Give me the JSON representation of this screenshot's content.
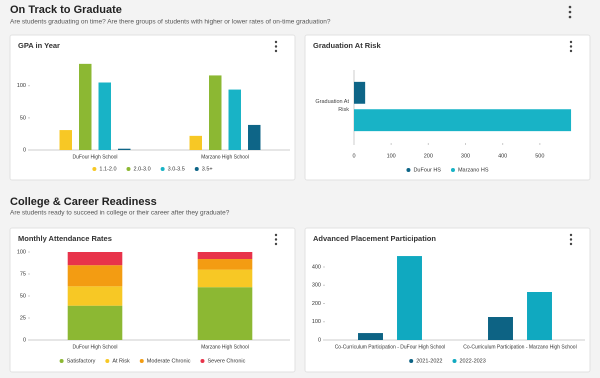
{
  "sections": [
    {
      "title": "On Track to Graduate",
      "subtitle": "Are students graduating on time? Are there groups of students with higher or lower rates of on-time graduation?"
    },
    {
      "title": "College & Career Readiness",
      "subtitle": "Are students ready to succeed in college or their career after they graduate?"
    }
  ],
  "chart_data": [
    {
      "type": "bar",
      "title": "GPA in Year",
      "categories": [
        "DuFour High School",
        "Marzano High School"
      ],
      "series": [
        {
          "name": "1.1-2.0",
          "color": "#f7c825",
          "values": [
            31,
            22
          ]
        },
        {
          "name": "2.0-3.0",
          "color": "#8cb833",
          "values": [
            134,
            116
          ]
        },
        {
          "name": "3.0-3.5",
          "color": "#18b3c6",
          "values": [
            105,
            94
          ]
        },
        {
          "name": "3.5+",
          "color": "#0e6587",
          "values": [
            2,
            39
          ]
        }
      ],
      "ylim": [
        0,
        140
      ],
      "yticks": [
        0,
        50,
        100
      ],
      "grid": false,
      "legend": "bottom"
    },
    {
      "type": "bar",
      "orientation": "horizontal",
      "title": "Graduation At Risk",
      "categories": [
        "Graduation At Risk"
      ],
      "series": [
        {
          "name": "DuFour HS",
          "color": "#0e6587",
          "values": [
            30
          ]
        },
        {
          "name": "Marzano HS",
          "color": "#18b3c6",
          "values": [
            584
          ]
        }
      ],
      "xlim": [
        0,
        600
      ],
      "xticks": [
        0,
        100,
        200,
        300,
        400,
        500
      ],
      "grid": false,
      "legend": "bottom"
    },
    {
      "type": "bar",
      "stacked": true,
      "title": "Monthly Attendance Rates",
      "categories": [
        "DuFour High School",
        "Marzano High School"
      ],
      "series": [
        {
          "name": "Satisfactory",
          "color": "#8cb833",
          "values": [
            39,
            60
          ]
        },
        {
          "name": "At Risk",
          "color": "#f7c825",
          "values": [
            22,
            20
          ]
        },
        {
          "name": "Moderate Chronic",
          "color": "#f39c12",
          "values": [
            24,
            12
          ]
        },
        {
          "name": "Severe Chronic",
          "color": "#e8334a",
          "values": [
            15,
            8
          ]
        }
      ],
      "ylim": [
        0,
        100
      ],
      "yticks": [
        0,
        25,
        50,
        75,
        100
      ],
      "grid": false,
      "legend": "bottom"
    },
    {
      "type": "bar",
      "title": "Advanced Placement Participation",
      "categories": [
        "Co-Curriculum Participation - DuFour High School",
        "Co-Curriculum Participation - Marzano High School"
      ],
      "series": [
        {
          "name": "2021-2022",
          "color": "#0d6384",
          "values": [
            38,
            126
          ]
        },
        {
          "name": "2022-2023",
          "color": "#10a9c0",
          "values": [
            460,
            263
          ]
        }
      ],
      "ylim": [
        0,
        480
      ],
      "yticks": [
        0,
        100,
        200,
        300,
        400
      ],
      "grid": false,
      "legend": "bottom"
    }
  ]
}
